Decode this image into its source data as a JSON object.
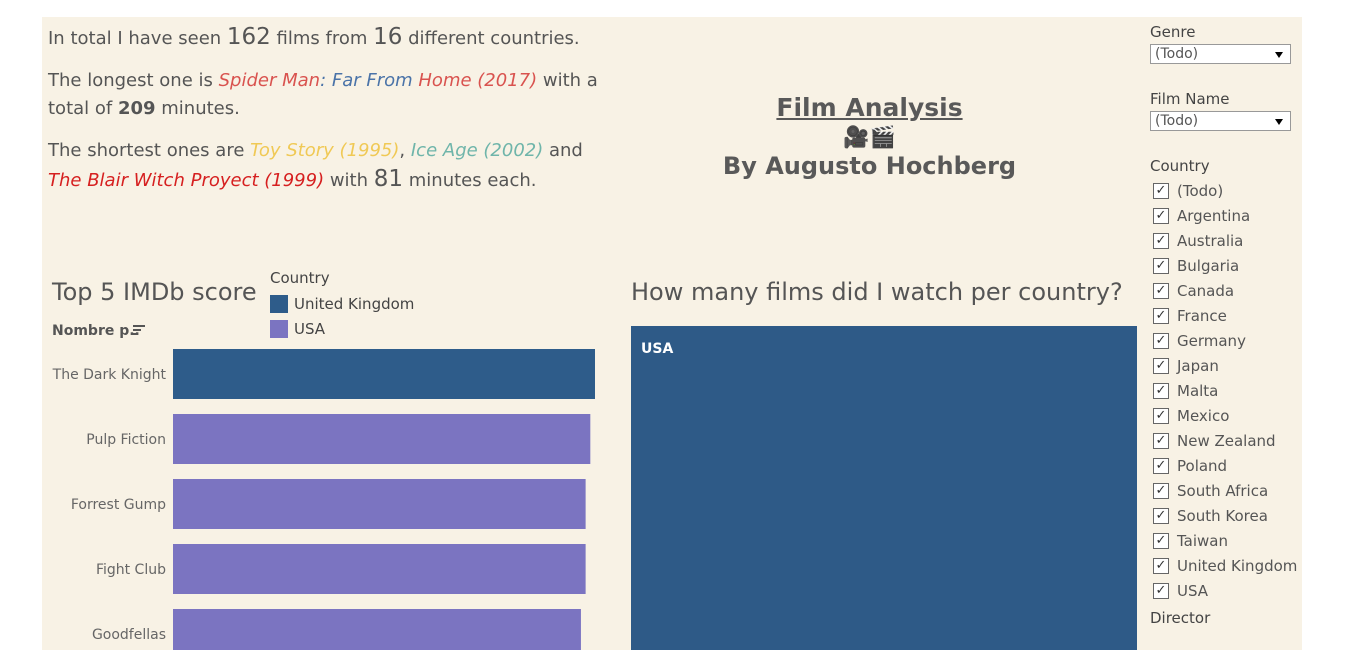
{
  "summary": {
    "line1": {
      "prefix": "In total  I have seen ",
      "films_count": "162",
      "mid": " films from ",
      "countries_count": "16",
      "suffix": " different countries."
    },
    "line2": {
      "prefix": "The longest one is ",
      "film_a": "Spider Man",
      "film_b": ": ",
      "film_c": "Far From",
      "film_d": " Home (2017)",
      "mid": " with a total of ",
      "minutes": "209",
      "suffix": " minutes.",
      "colors": {
        "film_a": "#d9534f",
        "film_c": "#4a73a8",
        "film_d": "#d9534f"
      }
    },
    "line3": {
      "prefix": "The shortest ones are ",
      "film_a": "Toy Story (1995)",
      "sep1": ", ",
      "film_b": "Ice Age (2002)",
      "sep2": " and",
      "film_c": "The Blair Witch Proyect (1999)",
      "mid": " with ",
      "minutes": "81",
      "suffix": " minutes each.",
      "colors": {
        "film_a": "#f0c955",
        "film_b": "#6fb5aa",
        "film_c": "#d62020"
      }
    }
  },
  "title": {
    "main": "Film Analysis",
    "emoji": "🎥🎬",
    "byline": "By Augusto Hochberg"
  },
  "top5": {
    "title": "Top 5 IMDb score",
    "axis_header": "Nombre p..",
    "legend": {
      "title": "Country",
      "items": [
        {
          "label": "United Kingdom",
          "color": "#2e5c8a"
        },
        {
          "label": "USA",
          "color": "#7b74c1"
        }
      ]
    }
  },
  "treemap_section": {
    "title": "How many films did I watch per country?"
  },
  "filters": {
    "genre": {
      "label": "Genre",
      "value": "(Todo)"
    },
    "film_name": {
      "label": "Film Name",
      "value": "(Todo)"
    },
    "country": {
      "label": "Country",
      "options": [
        "(Todo)",
        "Argentina",
        "Australia",
        "Bulgaria",
        "Canada",
        "France",
        "Germany",
        "Japan",
        "Malta",
        "Mexico",
        "New Zealand",
        "Poland",
        "South Africa",
        "South Korea",
        "Taiwan",
        "United Kingdom",
        "USA"
      ]
    },
    "director": {
      "label": "Director"
    }
  },
  "chart_data": [
    {
      "type": "bar",
      "orientation": "horizontal",
      "title": "Top 5 IMDb score",
      "categories": [
        "The Dark Knight",
        "Pulp Fiction",
        "Forrest Gump",
        "Fight Club",
        "Goodfellas"
      ],
      "values": [
        9.0,
        8.9,
        8.8,
        8.8,
        8.7
      ],
      "country": [
        "United Kingdom",
        "USA",
        "USA",
        "USA",
        "USA"
      ],
      "colors": {
        "United Kingdom": "#2e5c8a",
        "USA": "#7b74c1"
      },
      "legend": "top"
    },
    {
      "type": "treemap",
      "title": "How many films did I watch per country?",
      "categories": [
        "USA"
      ],
      "color": "#2e5a87"
    }
  ]
}
